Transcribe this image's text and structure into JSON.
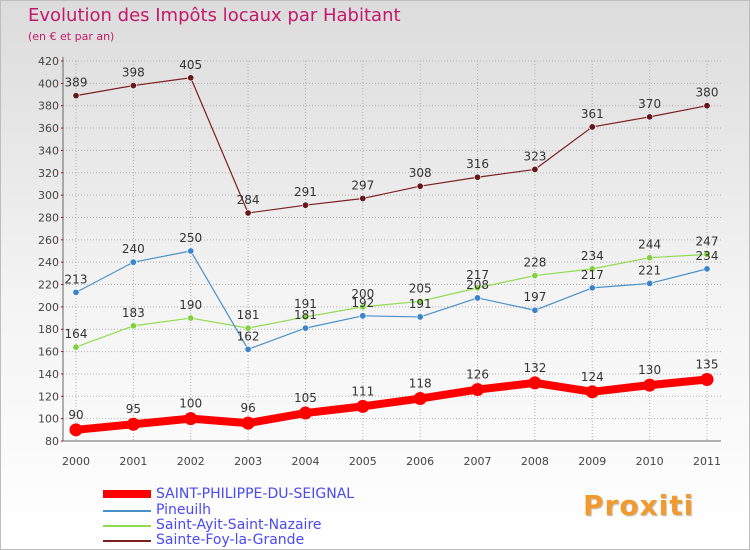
{
  "header": {
    "title": "Evolution des Impôts locaux par Habitant",
    "subtitle": "(en € et par an)"
  },
  "logo": "Proxiti",
  "colors": {
    "title": "#c4186b",
    "legend_text": "#4a4af5",
    "grid": "#b0b0b0",
    "axis_text": "#444444",
    "label_text": "#333333"
  },
  "chart_data": {
    "type": "line",
    "title": "Evolution des Impôts locaux par Habitant",
    "subtitle": "(en € et par an)",
    "xlabel": "",
    "ylabel": "",
    "categories": [
      "2000",
      "2001",
      "2002",
      "2003",
      "2004",
      "2005",
      "2006",
      "2007",
      "2008",
      "2009",
      "2010",
      "2011"
    ],
    "ylim": [
      80,
      420
    ],
    "yticks": [
      80,
      100,
      120,
      140,
      160,
      180,
      200,
      220,
      240,
      260,
      280,
      300,
      320,
      340,
      360,
      380,
      400,
      420
    ],
    "grid": true,
    "legend_position": "bottom-left",
    "series": [
      {
        "name": "SAINT-PHILIPPE-DU-SEIGNAL",
        "color": "#ff0000",
        "thick": true,
        "values": [
          90,
          95,
          100,
          96,
          105,
          111,
          118,
          126,
          132,
          124,
          130,
          135
        ]
      },
      {
        "name": "Pineuilh",
        "color": "#4a90c8",
        "marker": "#3a84cc",
        "values": [
          213,
          240,
          250,
          162,
          181,
          192,
          191,
          208,
          197,
          217,
          221,
          234
        ],
        "labels": [
          "213",
          "240",
          "250",
          "162",
          "181",
          "192",
          "191",
          "208",
          "197",
          "217",
          "221",
          "234"
        ]
      },
      {
        "name": "Saint-Ayit-Saint-Nazaire",
        "color": "#90dc50",
        "marker": "#80d040",
        "values": [
          164,
          183,
          190,
          181,
          191,
          200,
          205,
          217,
          228,
          234,
          244,
          247
        ]
      },
      {
        "name": "Sainte-Foy-la-Grande",
        "color": "#7a2020",
        "marker": "#661818",
        "values": [
          389,
          398,
          405,
          284,
          291,
          297,
          308,
          316,
          323,
          361,
          370,
          380
        ]
      }
    ]
  }
}
